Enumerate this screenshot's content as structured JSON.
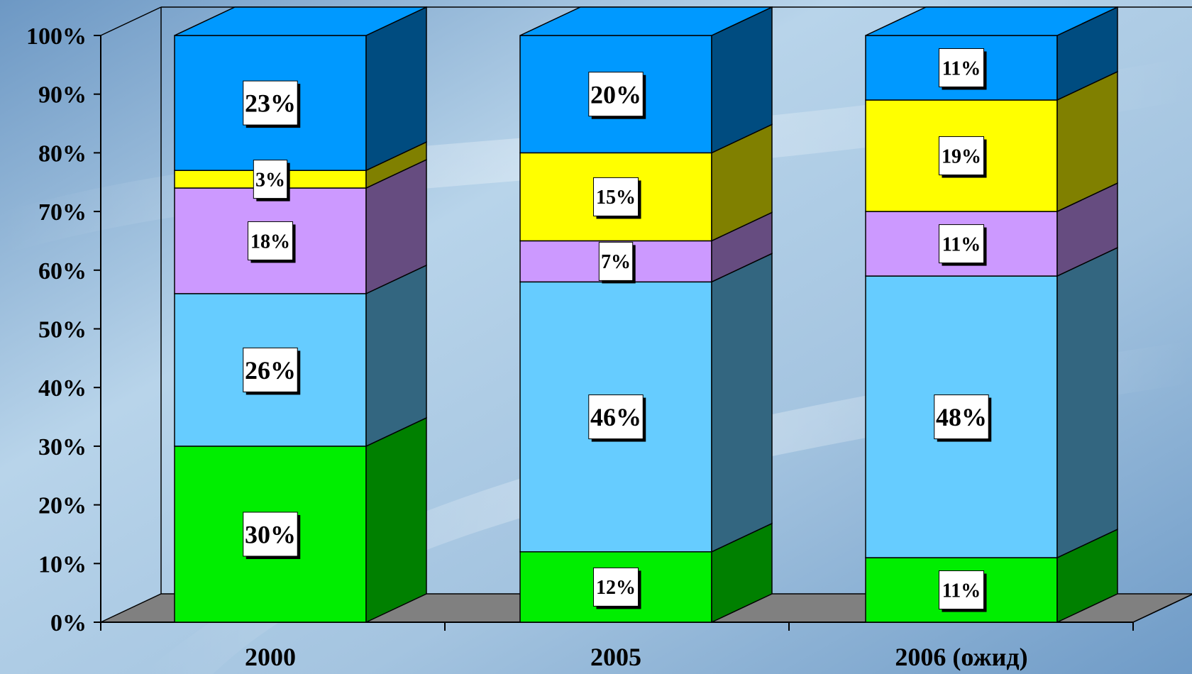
{
  "chart_data": {
    "type": "bar",
    "stacked": true,
    "three_d": true,
    "categories": [
      "2000",
      "2005",
      "2006 (ожид)"
    ],
    "series": [
      {
        "values": [
          30,
          12,
          11
        ],
        "color": "#00ee00",
        "side_color": "#008000"
      },
      {
        "values": [
          26,
          46,
          48
        ],
        "color": "#66ccff",
        "side_color": "#336680"
      },
      {
        "values": [
          18,
          7,
          11
        ],
        "color": "#cc99ff",
        "side_color": "#664c80"
      },
      {
        "values": [
          3,
          15,
          19
        ],
        "color": "#ffff00",
        "side_color": "#808000"
      },
      {
        "values": [
          23,
          20,
          11
        ],
        "color": "#0099ff",
        "side_color": "#004c80"
      }
    ],
    "data_labels": [
      [
        "30%",
        "26%",
        "18%",
        "3%",
        "23%"
      ],
      [
        "12%",
        "46%",
        "7%",
        "15%",
        "20%"
      ],
      [
        "11%",
        "48%",
        "11%",
        "19%",
        "11%"
      ]
    ],
    "y_ticks": [
      "0%",
      "10%",
      "20%",
      "30%",
      "40%",
      "50%",
      "60%",
      "70%",
      "80%",
      "90%",
      "100%"
    ],
    "ylim": [
      0,
      100
    ],
    "legend": "none",
    "grid": false
  }
}
